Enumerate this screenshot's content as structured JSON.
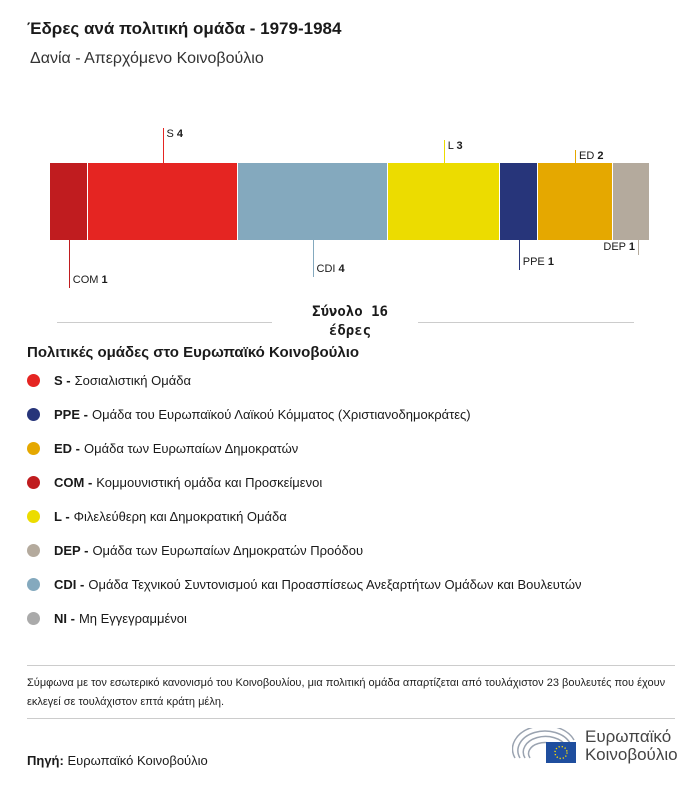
{
  "title": "Έδρες ανά πολιτική ομάδα - 1979-1984",
  "subtitle": "Δανία - Απερχόμενο Κοινοβούλιο",
  "chart_data": {
    "type": "bar",
    "stacked": true,
    "categories": [
      "COM",
      "S",
      "CDI",
      "L",
      "PPE",
      "ED",
      "DEP"
    ],
    "values": [
      1,
      4,
      4,
      3,
      1,
      2,
      1
    ],
    "colors": [
      "#c01c1f",
      "#e52522",
      "#84a9be",
      "#ecdc00",
      "#27357a",
      "#e5a800",
      "#b4aa9d"
    ],
    "label_side": [
      "below",
      "above",
      "below",
      "above",
      "below",
      "above",
      "below"
    ],
    "total_label": "Σύνολο  16",
    "total_unit": "έδρες"
  },
  "legend": {
    "title": "Πολιτικές ομάδες στο Ευρωπαϊκό Κοινοβούλιο",
    "items": [
      {
        "code": "S -",
        "name": "Σοσιαλιστική Ομάδα",
        "color": "#e52522"
      },
      {
        "code": "PPE -",
        "name": "Ομάδα του Ευρωπαϊκού Λαϊκού Κόμματος (Χριστιανοδημοκράτες)",
        "color": "#27357a"
      },
      {
        "code": "ED -",
        "name": "Ομάδα των Ευρωπαίων Δημοκρατών",
        "color": "#e5a800"
      },
      {
        "code": "COM -",
        "name": "Κομμουνιστική ομάδα και Προσκείμενοι",
        "color": "#c01c1f"
      },
      {
        "code": "L -",
        "name": "Φιλελεύθερη και Δημοκρατική Ομάδα",
        "color": "#ecdc00"
      },
      {
        "code": "DEP -",
        "name": "Ομάδα των Ευρωπαίων Δημοκρατών Προόδου",
        "color": "#b4aa9d"
      },
      {
        "code": "CDI -",
        "name": "Ομάδα Τεχνικού Συντονισμού και Προασπίσεως Ανεξαρτήτων Ομάδων και Βουλευτών",
        "color": "#84a9be"
      },
      {
        "code": "NI -",
        "name": "Μη Εγγεγραμμένοι",
        "color": "#aaaaaa"
      }
    ]
  },
  "note": "Σύμφωνα με τον εσωτερικό κανονισμό του Κοινοβουλίου, μια πολιτική ομάδα απαρτίζεται από τουλάχιστον 23 βουλευτές που έχουν εκλεγεί σε τουλάχιστον επτά κράτη μέλη.",
  "source": {
    "label": "Πηγή:",
    "value": "Ευρωπαϊκό Κοινοβούλιο"
  },
  "logo": {
    "line1": "Ευρωπαϊκό",
    "line2": "Κοινοβούλιο"
  }
}
